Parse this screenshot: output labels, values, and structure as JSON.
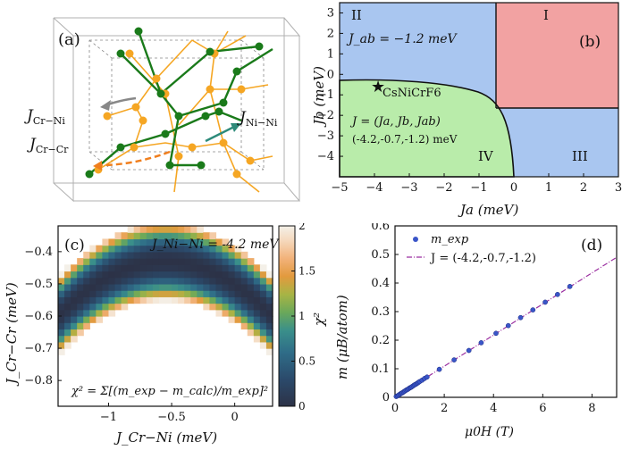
{
  "panel_a": {
    "label": "(a)",
    "labels": {
      "j_cr_ni": "J",
      "j_cr_ni_sub": "Cr−Ni",
      "j_cr_cr": "J",
      "j_cr_cr_sub": "Cr−Cr",
      "j_ni_ni": "J",
      "j_ni_ni_sub": "Ni−Ni"
    },
    "colors": {
      "ni": "#1a7a1a",
      "cr": "#f5a623",
      "arrow_gray": "#888888",
      "arrow_teal": "#2e8b7a",
      "arrow_orange": "#f07f1e"
    }
  },
  "panel_b": {
    "label": "(b)",
    "regions": {
      "r1": "I",
      "r2": "II",
      "r3": "III",
      "r4": "IV"
    },
    "jab_note": "J_ab = −1.2 meV",
    "compound": "CsNiCrF6",
    "vector_label": "J = (Ja, Jb, Jab)",
    "vector_value": "(-4.2,-0.7,-1.2) meV",
    "xlabel": "Ja (meV)",
    "ylabel": "Jb (meV)",
    "colors": {
      "blue": "#a9c6f0",
      "red": "#f2a2a2",
      "green": "#b9ecaa"
    }
  },
  "panel_c": {
    "label": "(c)",
    "annotation": "J_Ni−Ni = -4.2 meV",
    "formula": "χ² = Σ[(m_exp − m_calc)/m_exp]²",
    "xlabel": "J_Cr−Ni (meV)",
    "ylabel": "J_Cr−Cr (meV)",
    "colorbar_label": "χ²"
  },
  "panel_d": {
    "label": "(d)",
    "legend_points": "m_exp",
    "legend_line": "J = (-4.2,-0.7,-1.2)",
    "xlabel": "μ0H (T)",
    "ylabel": "m (μB/atom)"
  },
  "chart_data": [
    {
      "type": "area",
      "panel": "b",
      "title": "",
      "xlabel": "Ja (meV)",
      "ylabel": "Jb (meV)",
      "xlim": [
        -5,
        3
      ],
      "ylim": [
        -5,
        3.5
      ],
      "xticks": [
        -5,
        -4,
        -3,
        -2,
        -1,
        0,
        1,
        2,
        3
      ],
      "yticks": [
        -4,
        -3,
        -2,
        -1,
        0,
        1,
        2,
        3
      ],
      "regions": [
        {
          "name": "I",
          "color": "red",
          "bounds": {
            "x": [
              -0.8,
              3
            ],
            "y": [
              -1.2,
              3.5
            ]
          }
        },
        {
          "name": "II",
          "color": "blue",
          "bounds": {
            "x": [
              -5,
              -0.8
            ],
            "y": [
              -0.6,
              3.5
            ]
          }
        },
        {
          "name": "III",
          "color": "blue",
          "bounds": {
            "x": [
              -0.3,
              3
            ],
            "y": [
              -5,
              -1.2
            ]
          }
        },
        {
          "name": "IV",
          "color": "green",
          "boundary_curve": [
            [
              -5,
              -0.6
            ],
            [
              -4,
              -0.62
            ],
            [
              -3,
              -0.68
            ],
            [
              -2,
              -0.78
            ],
            [
              -1.4,
              -0.95
            ],
            [
              -0.9,
              -1.3
            ],
            [
              -0.6,
              -1.9
            ],
            [
              -0.45,
              -2.8
            ],
            [
              -0.38,
              -3.8
            ],
            [
              -0.35,
              -5
            ]
          ]
        }
      ],
      "marker": {
        "name": "CsNiCrF6",
        "x": -4.2,
        "y": -0.7
      }
    },
    {
      "type": "heatmap",
      "panel": "c",
      "xlabel": "J_Cr−Ni (meV)",
      "ylabel": "J_Cr−Cr (meV)",
      "xlim": [
        -1.4,
        0.3
      ],
      "ylim": [
        -0.88,
        -0.32
      ],
      "xticks": [
        -1,
        -0.5,
        0
      ],
      "yticks": [
        -0.8,
        -0.7,
        -0.6,
        -0.5,
        -0.4
      ],
      "colorbar": {
        "min": 0,
        "max": 2,
        "ticks": [
          0,
          0.5,
          1,
          1.5,
          2
        ],
        "label": "χ²"
      },
      "valley": {
        "center_x": -0.55,
        "min_y": -0.6,
        "curvature": 0.17,
        "band_halfwidth": 0.12
      }
    },
    {
      "type": "scatter",
      "panel": "d",
      "xlabel": "μ0H (T)",
      "ylabel": "m (μB/atom)",
      "xlim": [
        0,
        9
      ],
      "ylim": [
        0,
        0.6
      ],
      "xticks": [
        0,
        2,
        4,
        6,
        8
      ],
      "yticks": [
        0,
        0.1,
        0.2,
        0.3,
        0.4,
        0.5,
        0.6
      ],
      "series": [
        {
          "name": "m_exp",
          "kind": "points",
          "x": [
            0.05,
            0.1,
            0.15,
            0.2,
            0.25,
            0.3,
            0.35,
            0.4,
            0.45,
            0.5,
            0.55,
            0.6,
            0.65,
            0.7,
            0.75,
            0.8,
            0.85,
            0.9,
            0.95,
            1.0,
            1.1,
            1.2,
            1.3,
            1.8,
            2.4,
            3.0,
            3.5,
            4.1,
            4.6,
            5.1,
            5.6,
            6.1,
            6.6,
            7.1
          ],
          "y": [
            0.003,
            0.005,
            0.008,
            0.011,
            0.014,
            0.016,
            0.019,
            0.022,
            0.025,
            0.027,
            0.03,
            0.033,
            0.035,
            0.038,
            0.041,
            0.044,
            0.046,
            0.049,
            0.052,
            0.055,
            0.06,
            0.066,
            0.071,
            0.098,
            0.131,
            0.164,
            0.191,
            0.224,
            0.251,
            0.279,
            0.306,
            0.333,
            0.36,
            0.388
          ]
        },
        {
          "name": "J = (-4.2,-0.7,-1.2)",
          "kind": "line",
          "x": [
            0,
            9
          ],
          "y": [
            0,
            0.49
          ]
        }
      ]
    }
  ]
}
